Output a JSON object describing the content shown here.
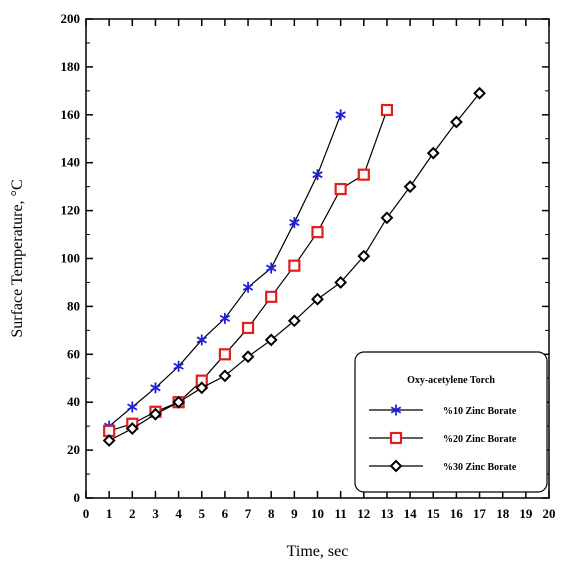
{
  "chart_data": {
    "type": "line",
    "xlabel": "Time, sec",
    "ylabel": "Surface Temperature, °C",
    "xlim": [
      0,
      20
    ],
    "ylim": [
      0,
      200
    ],
    "xticks": [
      0,
      1,
      2,
      3,
      4,
      5,
      6,
      7,
      8,
      9,
      10,
      11,
      12,
      13,
      14,
      15,
      16,
      17,
      18,
      19,
      20
    ],
    "yticks": [
      0,
      20,
      40,
      60,
      80,
      100,
      120,
      140,
      160,
      180,
      200
    ],
    "grid": false,
    "legend": {
      "title": "Oxy-acetylene Torch",
      "placement": "bottom-right"
    },
    "series": [
      {
        "name": "%10 Zinc Borate",
        "color": "#1f1fe0",
        "marker": "asterisk",
        "x": [
          1,
          2,
          3,
          4,
          5,
          6,
          7,
          8,
          9,
          10,
          11
        ],
        "y": [
          30,
          38,
          46,
          55,
          66,
          75,
          88,
          96,
          115,
          135,
          160
        ]
      },
      {
        "name": "%20 Zinc Borate",
        "color": "#e01f1f",
        "marker": "square",
        "x": [
          1,
          2,
          3,
          4,
          5,
          6,
          7,
          8,
          9,
          10,
          11,
          12,
          13
        ],
        "y": [
          28,
          31,
          36,
          40,
          49,
          60,
          71,
          84,
          97,
          111,
          129,
          135,
          162
        ]
      },
      {
        "name": "%30 Zinc Borate",
        "color": "#000000",
        "marker": "diamond",
        "x": [
          1,
          2,
          3,
          4,
          5,
          6,
          7,
          8,
          9,
          10,
          11,
          12,
          13,
          14,
          15,
          16,
          17
        ],
        "y": [
          24,
          29,
          35,
          40,
          46,
          51,
          59,
          66,
          74,
          83,
          90,
          101,
          117,
          130,
          144,
          157,
          169
        ]
      }
    ]
  }
}
